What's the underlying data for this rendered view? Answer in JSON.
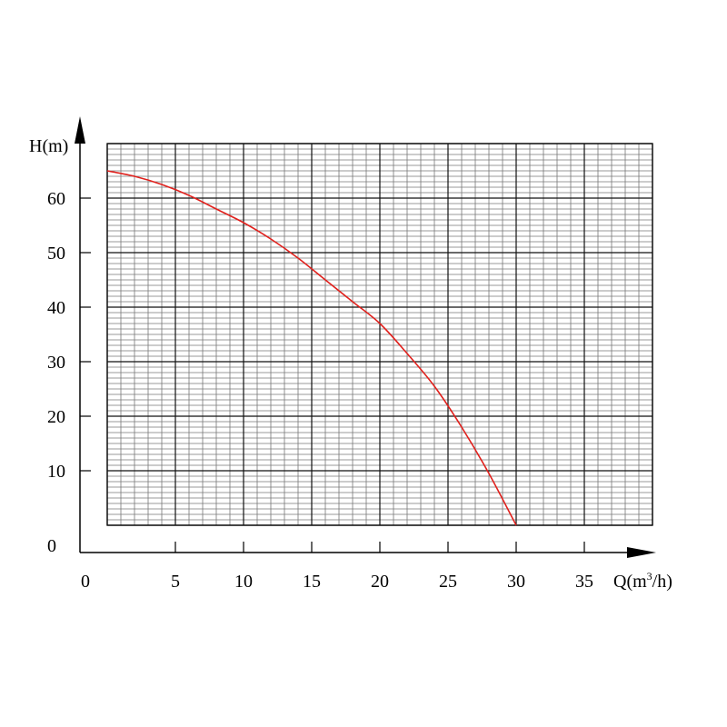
{
  "chart_data": {
    "type": "line",
    "title": "",
    "xlabel_main": "Q(m",
    "xlabel_sup": "3",
    "xlabel_tail": "/h)",
    "ylabel": "H(m)",
    "origin_x_label": "0",
    "origin_y_label": "0",
    "xlim": [
      -1,
      40
    ],
    "ylim": [
      0,
      70
    ],
    "x_ticks": [
      5,
      10,
      15,
      20,
      25,
      30,
      35
    ],
    "x_tick_labels": [
      "5",
      "10",
      "15",
      "20",
      "25",
      "30",
      "35"
    ],
    "y_ticks": [
      10,
      20,
      30,
      40,
      50,
      60
    ],
    "y_tick_labels": [
      "10",
      "20",
      "30",
      "40",
      "50",
      "60"
    ],
    "grid": true,
    "series": [
      {
        "color": "#e0201c",
        "x": [
          0,
          2,
          4,
          6,
          8,
          10,
          12,
          14,
          16,
          18,
          20,
          22,
          24,
          26,
          28,
          30
        ],
        "y": [
          65,
          64,
          62.5,
          60.5,
          58,
          55.5,
          52.5,
          49,
          45,
          41,
          37,
          31.5,
          25.5,
          18,
          9.5,
          0
        ]
      }
    ]
  }
}
